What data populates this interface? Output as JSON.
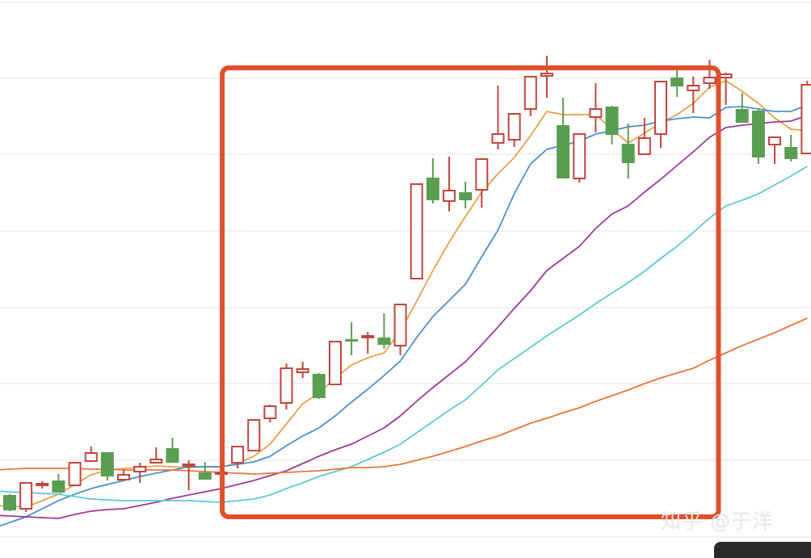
{
  "chart_data": {
    "type": "candlestick",
    "title": "",
    "xlabel": "",
    "ylabel": "",
    "ylim": [
      1.6,
      70
    ],
    "grid": true,
    "colors": {
      "up": "#c0463c",
      "down": "#5a9e52",
      "highlight_box": "#e0502a"
    },
    "candles_ohlc": [
      [
        8.7,
        6.8,
        8.8,
        6.7
      ],
      [
        7.0,
        10.2,
        10.2,
        6.6
      ],
      [
        10.0,
        10.1,
        10.4,
        9.5
      ],
      [
        10.5,
        9.0,
        11.3,
        9.0
      ],
      [
        9.9,
        12.7,
        12.8,
        9.9
      ],
      [
        12.9,
        13.9,
        14.7,
        12.9
      ],
      [
        14.0,
        11.0,
        14.0,
        10.5
      ],
      [
        10.6,
        11.2,
        11.8,
        10.4
      ],
      [
        11.6,
        12.2,
        12.7,
        10.2
      ],
      [
        12.7,
        13.1,
        14.6,
        12.7
      ],
      [
        14.5,
        12.7,
        15.8,
        12.7
      ],
      [
        12.3,
        12.5,
        13.0,
        9.3
      ],
      [
        11.5,
        10.6,
        12.8,
        10.6
      ],
      [
        11.3,
        11.5,
        13.6,
        10.4
      ],
      [
        12.7,
        14.7,
        14.7,
        12.0
      ],
      [
        14.2,
        18.0,
        18.0,
        14.2
      ],
      [
        18.2,
        19.7,
        19.9,
        17.7
      ],
      [
        20.1,
        24.4,
        25.0,
        19.3
      ],
      [
        23.9,
        24.3,
        25.2,
        23.2
      ],
      [
        23.7,
        20.7,
        23.8,
        20.6
      ],
      [
        22.4,
        27.7,
        27.7,
        22.4
      ],
      [
        28.0,
        27.7,
        30.1,
        26.0
      ],
      [
        28.2,
        28.4,
        28.9,
        26.2
      ],
      [
        28.2,
        27.3,
        31.2,
        26.8
      ],
      [
        27.2,
        32.3,
        32.3,
        26.0
      ],
      [
        35.5,
        47.2,
        47.2,
        35.5
      ],
      [
        48.0,
        45.2,
        50.4,
        44.8
      ],
      [
        45.1,
        46.4,
        50.6,
        43.8
      ],
      [
        46.2,
        45.2,
        47.5,
        44.2
      ],
      [
        46.5,
        50.3,
        50.3,
        44.3
      ],
      [
        52.3,
        53.4,
        59.4,
        51.5
      ],
      [
        52.7,
        55.9,
        55.9,
        51.8
      ],
      [
        56.5,
        60.5,
        60.5,
        55.6
      ],
      [
        60.6,
        60.9,
        63.1,
        57.9
      ],
      [
        54.5,
        47.9,
        57.9,
        47.9
      ],
      [
        47.9,
        53.4,
        53.4,
        47.4
      ],
      [
        55.5,
        56.5,
        59.7,
        53.6
      ],
      [
        56.8,
        53.3,
        56.9,
        52.1
      ],
      [
        52.2,
        49.8,
        54.7,
        47.9
      ],
      [
        50.9,
        52.9,
        55.4,
        50.9
      ],
      [
        53.4,
        59.9,
        59.9,
        51.7
      ],
      [
        60.4,
        59.3,
        61.3,
        58.0
      ],
      [
        58.8,
        59.4,
        60.5,
        56.0
      ],
      [
        59.7,
        60.4,
        62.6,
        59.0
      ],
      [
        60.4,
        60.8,
        61.0,
        57.0
      ],
      [
        56.5,
        54.8,
        58.5,
        54.8
      ],
      [
        56.3,
        50.5,
        56.5,
        49.7
      ],
      [
        52.1,
        53.0,
        53.0,
        49.7
      ],
      [
        51.8,
        50.3,
        53.3,
        50.0
      ],
      [
        51.0,
        59.5,
        60.0,
        51.0
      ]
    ],
    "series": [
      {
        "color": "#e8a04a",
        "values": [
          7.3,
          7.2,
          8.0,
          8.8,
          10.0,
          11.2,
          11.8,
          12.0,
          12.1,
          12.3,
          12.2,
          12.1,
          12.2,
          12.2,
          12.6,
          13.5,
          15.0,
          17.5,
          20.0,
          21.3,
          23.2,
          24.8,
          25.7,
          26.3,
          29.0,
          32.7,
          36.5,
          40.0,
          43.2,
          46.2,
          48.5,
          50.5,
          53.2,
          56.2,
          55.8,
          55.8,
          55.8,
          54.0,
          52.3,
          53.5,
          54.8,
          55.8,
          57.2,
          59.2,
          60.0,
          58.7,
          57.2,
          55.4,
          54.0,
          53.8
        ]
      },
      {
        "color": "#4a90d0",
        "values": [
          5.3,
          6.0,
          7.0,
          8.0,
          8.8,
          9.5,
          10.0,
          10.5,
          11.0,
          11.4,
          11.8,
          12.2,
          12.2,
          12.2,
          12.5,
          12.8,
          13.5,
          14.8,
          16.0,
          17.0,
          18.5,
          20.2,
          21.8,
          23.5,
          25.3,
          28.2,
          30.8,
          32.8,
          34.8,
          38.2,
          41.5,
          46.0,
          49.7,
          51.5,
          52.0,
          52.5,
          53.4,
          53.8,
          54.3,
          54.5,
          55.0,
          55.3,
          55.5,
          55.4,
          56.7,
          56.8,
          56.5,
          56.2,
          56.2,
          57.0
        ]
      },
      {
        "color": "#9b3a9b",
        "values": [
          6.1,
          6.0,
          5.9,
          5.8,
          6.3,
          6.7,
          6.9,
          7.0,
          7.4,
          7.8,
          8.3,
          8.7,
          9.1,
          9.5,
          10.0,
          10.5,
          11.1,
          11.7,
          12.6,
          13.5,
          14.3,
          15.0,
          16.0,
          17.0,
          18.5,
          20.3,
          22.0,
          23.6,
          25.2,
          27.3,
          29.5,
          31.8,
          34.0,
          36.5,
          38.0,
          39.5,
          41.7,
          43.5,
          44.5,
          46.2,
          47.8,
          49.5,
          51.2,
          53.0,
          54.2,
          54.5,
          54.7,
          54.9,
          55.0,
          55.7
        ]
      },
      {
        "color": "#5fc8d4",
        "values": [
          9.1,
          9.0,
          8.9,
          8.8,
          8.5,
          8.2,
          8.1,
          8.0,
          8.0,
          8.0,
          8.0,
          8.0,
          7.9,
          7.8,
          8.0,
          8.2,
          8.7,
          9.5,
          10.2,
          11.0,
          11.6,
          12.2,
          13.1,
          14.0,
          15.0,
          16.4,
          17.8,
          19.2,
          20.5,
          22.3,
          24.2,
          25.6,
          27.0,
          28.4,
          29.7,
          31.0,
          32.4,
          33.7,
          35.0,
          36.4,
          38.0,
          39.5,
          41.2,
          43.0,
          44.5,
          45.2,
          46.0,
          47.1,
          48.2,
          49.4
        ]
      },
      {
        "color": "#e8773a",
        "values": [
          11.9,
          12.0,
          12.0,
          12.0,
          12.0,
          11.9,
          11.9,
          11.8,
          11.8,
          11.8,
          11.8,
          11.7,
          11.6,
          11.5,
          11.4,
          11.3,
          11.4,
          11.5,
          11.6,
          11.7,
          11.9,
          12.1,
          12.1,
          12.2,
          12.5,
          13.0,
          13.5,
          14.1,
          14.7,
          15.4,
          16.0,
          16.8,
          17.6,
          18.2,
          18.9,
          19.5,
          20.3,
          21.0,
          21.7,
          22.5,
          23.2,
          23.8,
          24.4,
          25.4,
          26.3,
          27.2,
          28.0,
          28.8,
          29.7,
          30.6
        ]
      }
    ],
    "highlight_range": {
      "from_candle": 14,
      "to_candle": 43
    }
  },
  "watermark": "知乎 @于洋"
}
